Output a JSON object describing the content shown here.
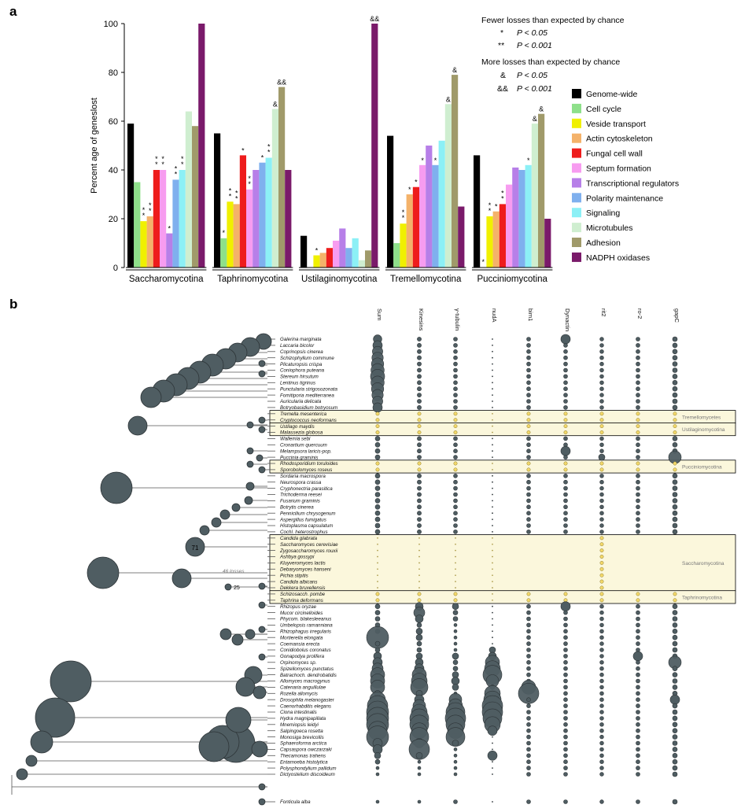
{
  "chart_data": [
    {
      "panel": "a",
      "type": "bar",
      "ylabel": "Percent age of geneslost",
      "ylim": [
        0,
        100
      ],
      "yticks": [
        "0",
        "20",
        "40",
        "60",
        "80",
        "100"
      ],
      "groups": [
        "Saccharomycotina",
        "Taphrinomycotina",
        "Ustilaginomycotina",
        "Tremellomycotina",
        "Pucciniomycotina"
      ],
      "series": [
        {
          "name": "Genome-wide",
          "color": "#000000",
          "values": [
            59,
            55,
            13,
            54,
            46
          ]
        },
        {
          "name": "Cell cycle",
          "color": "#8ee08a",
          "values": [
            35,
            12,
            0,
            10,
            0
          ]
        },
        {
          "name": "Veside transport",
          "color": "#f0f000",
          "values": [
            19,
            27,
            5,
            18,
            21
          ]
        },
        {
          "name": "Actin cytoskeleton",
          "color": "#f4b26a",
          "values": [
            21,
            26,
            6,
            30,
            23
          ]
        },
        {
          "name": "Fungal cell wall",
          "color": "#ee1c1c",
          "values": [
            40,
            46,
            8,
            33,
            26
          ]
        },
        {
          "name": "Septum formation",
          "color": "#f79cf0",
          "values": [
            40,
            32,
            11,
            42,
            34
          ]
        },
        {
          "name": "Transcriptional regulators",
          "color": "#b77fe8",
          "values": [
            14,
            40,
            16,
            50,
            41
          ]
        },
        {
          "name": "Polarity maintenance",
          "color": "#7fb0ee",
          "values": [
            36,
            43,
            8,
            42,
            40
          ]
        },
        {
          "name": "Signaling",
          "color": "#8cf0f6",
          "values": [
            40,
            45,
            12,
            52,
            42
          ]
        },
        {
          "name": "Microtubules",
          "color": "#cfeed0",
          "values": [
            64,
            65,
            3,
            67,
            59
          ]
        },
        {
          "name": "Adhesion",
          "color": "#a09a6a",
          "values": [
            58,
            74,
            7,
            79,
            63
          ]
        },
        {
          "name": "NADPH oxidases",
          "color": "#7a1a6a",
          "values": [
            100,
            40,
            100,
            25,
            20
          ]
        }
      ],
      "annotations": [
        {
          "group": 0,
          "series": 2,
          "text": "**"
        },
        {
          "group": 0,
          "series": 3,
          "text": "**"
        },
        {
          "group": 0,
          "series": 4,
          "text": "**"
        },
        {
          "group": 0,
          "series": 5,
          "text": "**"
        },
        {
          "group": 0,
          "series": 6,
          "text": "*"
        },
        {
          "group": 0,
          "series": 7,
          "text": "**"
        },
        {
          "group": 0,
          "series": 8,
          "text": "**"
        },
        {
          "group": 1,
          "series": 1,
          "text": "*"
        },
        {
          "group": 1,
          "series": 2,
          "text": "**"
        },
        {
          "group": 1,
          "series": 3,
          "text": "**"
        },
        {
          "group": 1,
          "series": 4,
          "text": "*"
        },
        {
          "group": 1,
          "series": 5,
          "text": "**"
        },
        {
          "group": 1,
          "series": 7,
          "text": "*"
        },
        {
          "group": 1,
          "series": 8,
          "text": "**"
        },
        {
          "group": 1,
          "series": 9,
          "text": "&"
        },
        {
          "group": 1,
          "series": 10,
          "text": "&&"
        },
        {
          "group": 2,
          "series": 2,
          "text": "*"
        },
        {
          "group": 2,
          "series": 11,
          "text": "&&"
        },
        {
          "group": 3,
          "series": 2,
          "text": "**"
        },
        {
          "group": 3,
          "series": 3,
          "text": "*"
        },
        {
          "group": 3,
          "series": 4,
          "text": "*"
        },
        {
          "group": 3,
          "series": 5,
          "text": "*"
        },
        {
          "group": 3,
          "series": 7,
          "text": "*"
        },
        {
          "group": 3,
          "series": 9,
          "text": "&"
        },
        {
          "group": 3,
          "series": 10,
          "text": "&"
        },
        {
          "group": 4,
          "series": 1,
          "text": "*"
        },
        {
          "group": 4,
          "series": 2,
          "text": "**"
        },
        {
          "group": 4,
          "series": 3,
          "text": "*"
        },
        {
          "group": 4,
          "series": 4,
          "text": "**"
        },
        {
          "group": 4,
          "series": 8,
          "text": "*"
        },
        {
          "group": 4,
          "series": 9,
          "text": "&"
        },
        {
          "group": 4,
          "series": 10,
          "text": "&"
        }
      ],
      "significance_legend": {
        "fewer_title": "Fewer losses than expected by chance",
        "fewer_items": [
          {
            "symbol": "*",
            "text": "P < 0.05"
          },
          {
            "symbol": "**",
            "text": "P < 0.001"
          }
        ],
        "more_title": "More losses than expected by chance",
        "more_items": [
          {
            "symbol": "&",
            "text": "P < 0.05"
          },
          {
            "symbol": "&&",
            "text": "P < 0.001"
          }
        ]
      }
    },
    {
      "panel": "b",
      "type": "heatmap",
      "columns": [
        "Sum",
        "Kinesins",
        "γ-tubulin",
        "nudA",
        "bim1",
        "Dynactin",
        "rit2",
        "ro-2",
        "gapC"
      ],
      "node_labels": [
        "71",
        "25"
      ],
      "branch_label": "46 losses",
      "species": [
        "Galerina marginata",
        "Laccaria bicolor",
        "Coprinopsis cinerea",
        "Schizophyllum commune",
        "Plicaturopsis crispa",
        "Coniophora puteana",
        "Stereum hirsutum",
        "Lentinus tigrinus",
        "Punctularia strigosozonata",
        "Fomitiporia mediterranea",
        "Auricularia delicata",
        "Botryobasidium botryosum",
        "Tremella mesenterica",
        "Cryptococcus neoformans",
        "Ustilago maydis",
        "Malassezia globosa",
        "Wallemia sebi",
        "Cronartium quercuum",
        "Melampsora laricis-pop.",
        "Puccinia graminis",
        "Rhodosporidium toruloides",
        "Sporobolomyces roseus",
        "Sordaria macrospora",
        "Neurospora crassa",
        "Cryphonectria parasitica",
        "Trichoderma reesei",
        "Fusarium graminis",
        "Botrytis cinerea",
        "Pennicilium chrysogenum",
        "Aspergillus fumigatus",
        "Histoplasma capsulatum",
        "Cochl. heterostrophus",
        "Candida glabrata",
        "Saccharomyces cerevisiae",
        "Zygosaccharomyces rouxii",
        "Ashbya gossypi",
        "Kluyveromyces lactis",
        "Debaryomyces hanseni",
        "Pichia stipitis",
        "Candida albicans",
        "Dekkera bruxellensis",
        "Schizosacch. pombe",
        "Taphrina deformans",
        "Rhizopus oryzae",
        "Mucor circinelloides",
        "Phycom. blakesleeanus",
        "Umbelopsis ramanniana",
        "Rhizophagus irregularis",
        "Mortierella elongata",
        "Coemansia erecta",
        "Conidiobolus coronatus",
        "Gonapodya prolifera",
        "Orpinomyces sp.",
        "Spizellomyces punctatus",
        "Batrachoch. dendrobatidis",
        "Allomyces macrogynus",
        "Catenaria anguillulae",
        "Rozella allomycis",
        "Drosophila melanogaster",
        "Caenorhabditis elegans",
        "Ciona intestinalis",
        "Hydra magnipapillata",
        "Mnemiopsis leidyi",
        "Salpingoeca rosetta",
        "Monosiga brevicollis",
        "Sphaeroforma arctica",
        "Capsaspora owczarzaki",
        "Thecamonas trahens",
        "Entamoeba histolytica",
        "Polysphondylium pallidum",
        "Dictyostelium discoideum",
        "Fonticula alba"
      ],
      "clades": [
        {
          "label": "Tremellomycetes",
          "rows": [
            12,
            13
          ]
        },
        {
          "label": "Ustilaginomycotina",
          "rows": [
            14,
            15
          ]
        },
        {
          "label": "Pucciniomycotina",
          "rows": [
            20,
            21
          ]
        },
        {
          "label": "Saccharomycotina",
          "rows": [
            32,
            40
          ]
        },
        {
          "label": "Taphrinomycotina",
          "rows": [
            41,
            42
          ]
        }
      ]
    }
  ]
}
